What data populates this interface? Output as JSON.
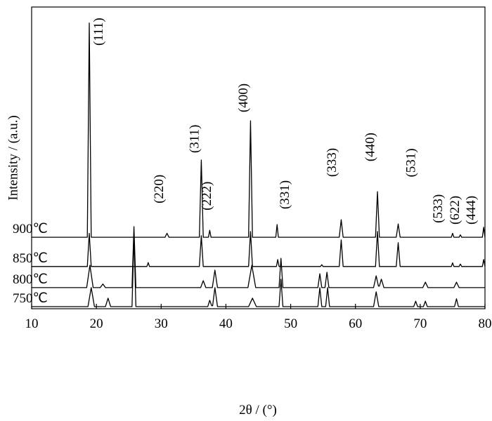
{
  "chart_data": {
    "type": "line",
    "xlabel": "2θ / (°)",
    "ylabel": "Intensity / (a.u.)",
    "xlim": [
      10,
      80
    ],
    "xticks": [
      10,
      20,
      30,
      40,
      50,
      60,
      70,
      80
    ],
    "ylim": [
      0,
      100
    ],
    "series": [
      {
        "name": "900℃",
        "color": "#000000",
        "x": [
          10,
          18.6,
          18.9,
          19.2,
          30.6,
          30.9,
          31.2,
          35.9,
          36.2,
          36.5,
          37.3,
          37.5,
          37.7,
          43.5,
          43.8,
          44.1,
          47.7,
          47.9,
          48.1,
          57.5,
          57.8,
          58.1,
          63.1,
          63.4,
          63.7,
          66.3,
          66.6,
          66.9,
          74.8,
          75,
          75.2,
          76,
          76.2,
          76.4,
          79.6,
          79.8,
          80
        ],
        "values": [
          23.7,
          23.7,
          94.7,
          23.7,
          23.7,
          25,
          23.7,
          23.7,
          49.3,
          23.7,
          23.7,
          26,
          23.7,
          23.7,
          62.3,
          23.7,
          23.7,
          27.9,
          23.7,
          23.7,
          29.5,
          23.7,
          23.7,
          38.8,
          23.7,
          23.7,
          28.1,
          23.7,
          23.7,
          25,
          23.7,
          23.7,
          24.5,
          23.7,
          23.7,
          27,
          23.7
        ]
      },
      {
        "name": "850℃",
        "color": "#000000",
        "x": [
          10,
          18.6,
          18.9,
          19.2,
          27.8,
          28,
          28.2,
          35.9,
          36.2,
          36.5,
          43.5,
          43.8,
          44.1,
          47.8,
          48,
          48.2,
          54.6,
          54.8,
          55,
          57.5,
          57.8,
          58.1,
          63.1,
          63.4,
          63.7,
          66.3,
          66.6,
          66.9,
          74.8,
          75,
          75.2,
          76,
          76.2,
          76.4,
          79.6,
          79.8,
          80
        ],
        "values": [
          14,
          14,
          25,
          14,
          14,
          15.3,
          14,
          14,
          24.2,
          14,
          14,
          25.6,
          14,
          14,
          16.3,
          14,
          14,
          14.6,
          14,
          14,
          22.8,
          14,
          14,
          25.6,
          14,
          14,
          21.9,
          14,
          14,
          15.2,
          14,
          14,
          14.8,
          14,
          14,
          16.3,
          14
        ]
      },
      {
        "name": "800℃",
        "color": "#000000",
        "x": [
          10,
          18.5,
          19,
          19.5,
          20.6,
          21,
          21.4,
          25.5,
          25.8,
          26.1,
          36.1,
          36.5,
          36.9,
          37.9,
          38.3,
          38.7,
          43.4,
          44,
          44.6,
          48.2,
          48.5,
          48.8,
          54.2,
          54.5,
          54.8,
          55.3,
          55.6,
          55.9,
          62.8,
          63.2,
          63.55,
          63.7,
          64,
          64.4,
          70.4,
          70.8,
          71.2,
          75.2,
          75.6,
          76,
          80
        ],
        "values": [
          7,
          7,
          14.4,
          7,
          7,
          8.2,
          7,
          7,
          27.2,
          7,
          7,
          9.3,
          7,
          7,
          12.8,
          7,
          7,
          14.4,
          7,
          7,
          16.7,
          7,
          7,
          11.6,
          7,
          7,
          12.1,
          7,
          7,
          10.9,
          7.5,
          7.5,
          9.8,
          7,
          7,
          8.8,
          7,
          7,
          8.8,
          7,
          7
        ]
      },
      {
        "name": "750℃",
        "color": "#000000",
        "x": [
          10,
          18.7,
          19.2,
          19.7,
          21.4,
          21.8,
          22.2,
          25.5,
          25.8,
          26.1,
          37.2,
          37.5,
          37.8,
          37.95,
          38.3,
          38.7,
          43.5,
          44.1,
          44.7,
          48.2,
          48.5,
          48.8,
          54.2,
          54.5,
          54.8,
          55.4,
          55.7,
          56,
          62.8,
          63.2,
          63.6,
          69,
          69.3,
          69.6,
          70.5,
          70.8,
          71.1,
          75.3,
          75.6,
          75.9,
          80
        ],
        "values": [
          0.7,
          0.7,
          7,
          0.7,
          0.7,
          3.5,
          0.7,
          0.7,
          24,
          0.7,
          0.7,
          2.8,
          1,
          1,
          7,
          0.7,
          0.7,
          3.5,
          0.7,
          0.7,
          9.8,
          0.7,
          0.7,
          7,
          0.7,
          0.7,
          7,
          0.7,
          0.7,
          5.6,
          0.7,
          0.7,
          2.5,
          0.7,
          0.7,
          2.5,
          0.7,
          0.7,
          3.3,
          0.7,
          0.7
        ]
      }
    ],
    "annotations": [
      {
        "text": "(111)",
        "x": 20.96,
        "y": 87.2
      },
      {
        "text": "(220)",
        "x": 30.3,
        "y": 34.9
      },
      {
        "text": "(311)",
        "x": 35.8,
        "y": 51.6
      },
      {
        "text": "(222)",
        "x": 37.7,
        "y": 32.6
      },
      {
        "text": "(400)",
        "x": 43.3,
        "y": 65.1
      },
      {
        "text": "(331)",
        "x": 49.7,
        "y": 33
      },
      {
        "text": "(333)",
        "x": 57,
        "y": 43.7
      },
      {
        "text": "(440)",
        "x": 62.9,
        "y": 48.8
      },
      {
        "text": "(531)",
        "x": 69.2,
        "y": 43.6
      },
      {
        "text": "(533)",
        "x": 73.4,
        "y": 28.4
      },
      {
        "text": "(622)",
        "x": 76,
        "y": 27.9
      },
      {
        "text": "(444)",
        "x": 78.5,
        "y": 27.9
      }
    ]
  }
}
